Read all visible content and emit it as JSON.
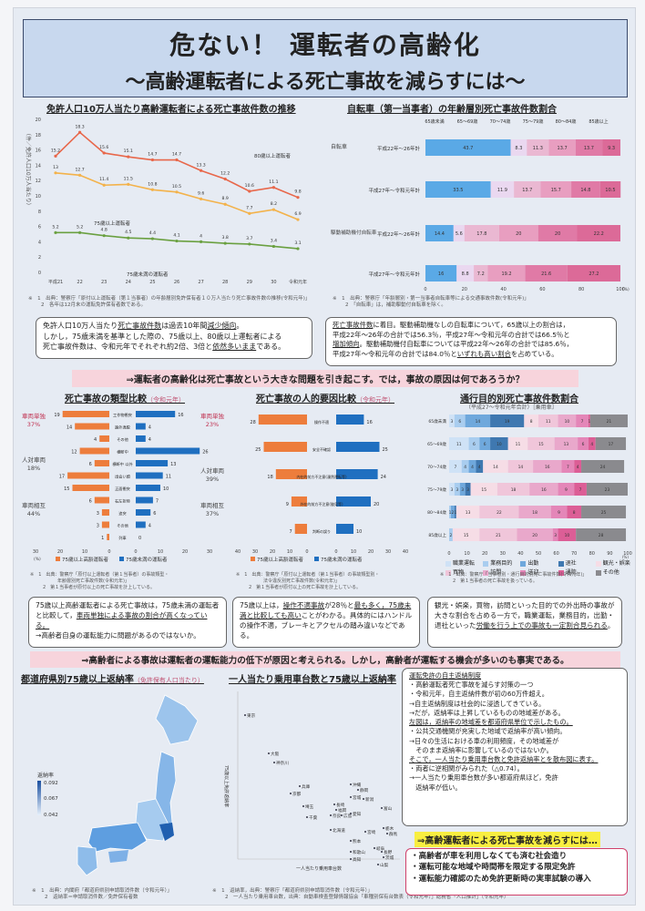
{
  "header": {
    "title": "危ない！ 運転者の高齢化",
    "subtitle": "〜高齢運転者による死亡事故を減らすには〜"
  },
  "chart_data": [
    {
      "type": "line",
      "title": "免許人口10万人当たり高齢運転者による死亡事故件数の推移",
      "ylabel": "（件／免許人口10万人当たり）",
      "ylim": [
        0,
        20
      ],
      "yticks": [
        "0",
        "2",
        "4",
        "6",
        "8",
        "10",
        "12",
        "14",
        "16",
        "18",
        "20"
      ],
      "categories": [
        "平成21",
        "22",
        "23",
        "24",
        "25",
        "26",
        "27",
        "28",
        "29",
        "30",
        "令和元年"
      ],
      "series": [
        {
          "name": "80歳以上運転者",
          "color": "#e8674a",
          "values": [
            15.2,
            18.3,
            15.6,
            15.1,
            14.7,
            14.7,
            13.3,
            12.2,
            10.6,
            11.1,
            9.8
          ]
        },
        {
          "name": "75歳以上運転者",
          "color": "#f3b24a",
          "values": [
            13,
            12.7,
            11.4,
            11.5,
            10.8,
            10.5,
            9.6,
            8.9,
            7.7,
            8.2,
            6.9
          ]
        },
        {
          "name": "75歳未満の運転者",
          "color": "#6aa040",
          "values": [
            5.2,
            5.2,
            4.8,
            4.5,
            4.4,
            4.1,
            4,
            3.8,
            3.7,
            3.4,
            3.1
          ]
        }
      ],
      "notes": [
        "※　1　出典：警察庁「原付以上運転者（第１当事者）の年齢層別免許保有者１０万人当たり死亡事故件数の推移(令和元年)」",
        "2　各年は12月末の運転免許保有者数である。"
      ]
    },
    {
      "type": "bar",
      "stacked": true,
      "orientation": "horizontal",
      "title": "自転車（第一当事者）の年齢層別死亡事故件数割合",
      "segments": [
        "65歳未満",
        "65〜69歳",
        "70〜74歳",
        "75〜79歳",
        "80〜84歳",
        "85歳以上"
      ],
      "colors": [
        "#5aa9e6",
        "#ead8f0",
        "#eab8d2",
        "#e89ec0",
        "#e07aa6",
        "#dc6a98"
      ],
      "groups": [
        "自転車",
        "駆動補助機付自転車"
      ],
      "categories": [
        "平成22年〜26年計",
        "平成27年〜令和元年計",
        "平成22年〜26年計",
        "平成27年〜令和元年計"
      ],
      "rows": [
        [
          43.7,
          8.3,
          11.3,
          13.7,
          13.7,
          9.3
        ],
        [
          33.5,
          11.9,
          13.7,
          15.7,
          14.8,
          10.5
        ],
        [
          14.4,
          5.6,
          17.8,
          20,
          20,
          22.2
        ],
        [
          16,
          8.8,
          7.2,
          19.2,
          21.6,
          27.2
        ]
      ],
      "xticks": [
        "0",
        "20",
        "40",
        "60",
        "80",
        "100"
      ],
      "unit": "(%)",
      "notes": [
        "※　1　出典：警察庁「年齢層別・第一当事者自転車等による交通事故件数(令和元年)」",
        "2　「自転車」は，補助駆動付自転車を除く。"
      ]
    },
    {
      "type": "bar",
      "orientation": "butterfly",
      "title": "死亡事故の類型比較",
      "subtitle": "（令和元年）",
      "categories": [
        "工作物衝突",
        "路外逸脱",
        "その他",
        "横断中",
        "横断中 以外",
        "出会い頭",
        "正面衝突",
        "右左折時",
        "追突",
        "その他",
        "列車"
      ],
      "series": [
        {
          "name": "75歳以上高齢運転者",
          "color": "#ed7d3c",
          "values": [
            19,
            14,
            4,
            12,
            6,
            17,
            15,
            6,
            3,
            3,
            1
          ]
        },
        {
          "name": "75歳未満の運転者",
          "color": "#1f6fc0",
          "values": [
            16,
            4,
            4,
            26,
            13,
            11,
            10,
            7,
            6,
            4,
            0
          ]
        }
      ],
      "left_groups": [
        {
          "label": "車両単独",
          "pct": "37%"
        },
        {
          "label": "人対車両",
          "pct": "18%"
        },
        {
          "label": "車両相互",
          "pct": "44%"
        }
      ],
      "right_groups": [
        {
          "label": "車両単独",
          "pct": "23%"
        },
        {
          "label": "人対車両",
          "pct": "39%"
        },
        {
          "label": "車両相互",
          "pct": "37%"
        }
      ],
      "xticks_left": [
        "30",
        "20",
        "10",
        "0"
      ],
      "xticks_right": [
        "0",
        "10",
        "20",
        "30"
      ],
      "unit": "(%)",
      "notes": [
        "※　1　出典：警察庁「原付以上運転者（第１当事者）の事故類型・",
        "年齢層別死亡事故件数(令和元年)」",
        "2　第１当事者が原付以上の死亡事故を計上している。"
      ]
    },
    {
      "type": "bar",
      "orientation": "butterfly",
      "title": "死亡事故の人的要因比較",
      "subtitle": "（令和元年）",
      "categories": [
        "操作不適",
        "安全不確認",
        "内在的前方不注意(漫然運転等)",
        "外在的前方不注意(脇見等)",
        "判断の誤り"
      ],
      "series": [
        {
          "name": "75歳以上高齢運転者",
          "color": "#ed7d3c",
          "values": [
            28,
            25,
            18,
            9,
            7
          ]
        },
        {
          "name": "75歳未満の運転者",
          "color": "#1f6fc0",
          "values": [
            16,
            25,
            24,
            20,
            10
          ]
        }
      ],
      "xticks_left": [
        "40",
        "30",
        "20",
        "10",
        "0"
      ],
      "xticks_right": [
        "0",
        "10",
        "20",
        "30",
        "40"
      ],
      "unit": "(%)",
      "notes": [
        "※　1　出典：警察庁「原付以上運転者（第１当事者）の事故類型別・",
        "法令違反別死亡事故件数(令和元年)」",
        "2　第１当事者が原付以上の死亡事故を計上している。"
      ]
    },
    {
      "type": "bar",
      "stacked": true,
      "orientation": "horizontal",
      "title": "通行目的別死亡事故件数割合",
      "subtitle": "（平成27〜令和元年合計）［乗用車］",
      "segments": [
        "職業運転",
        "業務目的",
        "出勤",
        "退社",
        "観光・娯楽",
        "買物",
        "訪問",
        "送迎",
        "通院",
        "その他"
      ],
      "colors": [
        "#cfe2f6",
        "#a9cdef",
        "#6fa8dc",
        "#3f78b0",
        "#f6dde6",
        "#f0c6da",
        "#e9a8cb",
        "#e486b8",
        "#dc5e96",
        "#8a8a8e"
      ],
      "categories": [
        "65歳未満",
        "65〜69歳",
        "70〜74歳",
        "75〜79歳",
        "80〜84歳",
        "85歳以上"
      ],
      "rows": [
        [
          3,
          6,
          14,
          19,
          8,
          11,
          10,
          7,
          1,
          21
        ],
        [
          11,
          6,
          6,
          10,
          11,
          15,
          13,
          6,
          4,
          17
        ],
        [
          7,
          4,
          4,
          4,
          14,
          14,
          16,
          7,
          4,
          24
        ],
        [
          3,
          3,
          3,
          3,
          15,
          18,
          16,
          9,
          7,
          23
        ],
        [
          0,
          1,
          2,
          1,
          13,
          22,
          18,
          9,
          8,
          25
        ],
        [
          0,
          2,
          0,
          0,
          15,
          21,
          20,
          3,
          10,
          28
        ]
      ],
      "xticks": [
        "0",
        "10",
        "20",
        "30",
        "40",
        "50",
        "60",
        "70",
        "80",
        "90",
        "100"
      ],
      "unit": "(%)",
      "notes": [
        "※　1　出典：警察庁「当事者別・通行目的別死亡事故件数(令和元年)」",
        "2　第１当事者の死亡事故を扱っている。"
      ]
    },
    {
      "type": "scatter",
      "title": "一人当たり乗用車台数と75歳以上返納率",
      "xlabel": "一人当たり乗用車台数",
      "ylabel": "75歳以上免許返納率",
      "labels": [
        "東京",
        "大阪",
        "神奈川",
        "兵庫",
        "京都",
        "埼玉",
        "千葉",
        "長崎",
        "福岡",
        "奈良",
        "広島",
        "愛知",
        "北海道",
        "沖縄",
        "静岡",
        "宮城",
        "新潟",
        "富山",
        "栃木",
        "群馬",
        "岐阜",
        "長野",
        "茨城",
        "山梨",
        "高知",
        "和歌山",
        "熊本",
        "宮崎"
      ],
      "notes": [
        "※　1　返納率，出典：警察庁「都道府県別申請取消件数（令和元年）」",
        "2　一人当たり乗用車台数，出典：自動車検査登録情報協会「車種別保有台数表（令和元年）」総務省「人口推計」（令和元年）"
      ]
    }
  ],
  "map": {
    "title": "都道府県別75歳以上返納率",
    "subtitle": "（免許保有人口当たり）",
    "legend_title": "返納率",
    "legend_values": [
      "0.092",
      "0.067",
      "0.042"
    ],
    "notes": [
      "※　1　出典：内閣府「都道府県別申請取消件数（令和元年）」",
      "2　返納率＝申請取消件数／免許保有者数"
    ]
  },
  "texts": {
    "box1": [
      "免許人口10万人当たり",
      "死亡事故件数",
      "は過去10年間",
      "減少傾向",
      "。",
      "しかし，75歳未満を基準とした際の、75歳以上、80歳以上運転者による",
      "死亡事故件数は、令和元年でそれぞれ約2倍、3倍と",
      "依然多いまま",
      "である。"
    ],
    "box2": [
      "死亡事故件数",
      "に着目。駆動補助機なしの自転車について，65歳以上の割合は，",
      "平成22年〜26年の合計では56.3％，平成27年〜令和元年の合計では66.5％と",
      "増加傾向",
      "。駆動補助機付自転車については平成22年〜26年の合計では85.6％，",
      "平成27年〜令和元年の合計では84.0％と",
      "いずれも高い割合",
      "を占めている。"
    ],
    "banner1": "⇒運転者の高齢化は死亡事故という大きな問題を引き起こす。では，事故の原因は何であろうか？",
    "box3": [
      "75歳以上高齢運転者による死亡事故は，75歳未満の運転者と比較して，",
      "車両単独による事故の割合が高くなっている。",
      "→高齢者自身の運転能力に問題があるのではないか。"
    ],
    "box4": [
      "75歳以上は，",
      "操作不適事故",
      "が28％と",
      "最も多く，",
      "75歳未満と比較しても高い",
      "ことがわかる。具体的にはハンドルの操作不適，ブレーキとアクセルの踏み違いなどである。"
    ],
    "box5": [
      "観光・娯楽，買物，訪問といった目的での外出時の事故が大きな割合を占める一方で，職業運転，業務目的，出勤・退社といった",
      "労働を行う上での事故も一定割合見られる",
      "。"
    ],
    "banner2": "⇒高齢者による事故は運転者の運転能力の低下が原因と考えられる。しかし，高齢者が運転する機会が多いのも事実である。",
    "box6": {
      "title": "運転免許の自主返納制度",
      "l1": "・高齢運転者死亡事故を減らす対策の一つ",
      "l2": "・令和元年，自主返納件数が初の60万件超え。",
      "l3": "→自主返納制度は社会的に浸透してきている。",
      "l4": "→だが，返納率は上昇しているものの地域差がある。",
      "h2": "左図は，返納率の地域差を都道府県単位で示したもの。",
      "l5": "・公共交通機関が充実した地域で返納率が高い傾向。",
      "l6": "→日々の生活における車の利用頻度，その地域差が",
      "l7": "　そのまま返納率に影響しているのではないか。",
      "h3": "そこで，一人当たり乗用車台数と免許返納率とを散布図に表す。",
      "l8": "・両者に逆相関がみられた（△0.74）。",
      "l9": "→一人当たり乗用車台数が多い都道府県ほど，免許",
      "l10": "　返納率が低い。"
    },
    "conclusion_title": "⇒高齢運転者による死亡事故を減らすには…",
    "conclusion": [
      "・高齢者が車を利用しなくても済む社会造り",
      "・運転可能な地域や時間帯を限定する限定免許",
      "・運転能力確認のため免許更新時の実車試験の導入"
    ]
  }
}
